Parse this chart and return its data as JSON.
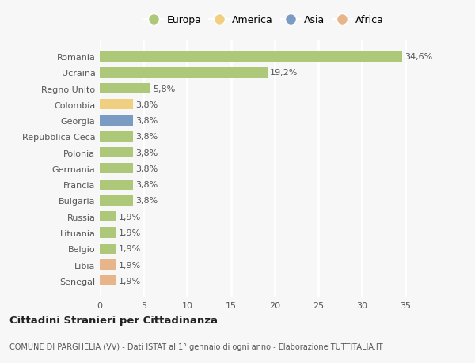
{
  "categories": [
    "Senegal",
    "Libia",
    "Belgio",
    "Lituania",
    "Russia",
    "Bulgaria",
    "Francia",
    "Germania",
    "Polonia",
    "Repubblica Ceca",
    "Georgia",
    "Colombia",
    "Regno Unito",
    "Ucraina",
    "Romania"
  ],
  "values": [
    1.9,
    1.9,
    1.9,
    1.9,
    1.9,
    3.8,
    3.8,
    3.8,
    3.8,
    3.8,
    3.8,
    3.8,
    5.8,
    19.2,
    34.6
  ],
  "labels": [
    "1,9%",
    "1,9%",
    "1,9%",
    "1,9%",
    "1,9%",
    "3,8%",
    "3,8%",
    "3,8%",
    "3,8%",
    "3,8%",
    "3,8%",
    "3,8%",
    "5,8%",
    "19,2%",
    "34,6%"
  ],
  "colors": [
    "#e8b48a",
    "#e8b48a",
    "#aec87a",
    "#aec87a",
    "#aec87a",
    "#aec87a",
    "#aec87a",
    "#aec87a",
    "#aec87a",
    "#aec87a",
    "#7b9cc2",
    "#f0d080",
    "#aec87a",
    "#aec87a",
    "#aec87a"
  ],
  "europa_color": "#aec87a",
  "america_color": "#f0d080",
  "asia_color": "#7b9cc2",
  "africa_color": "#e8b48a",
  "bg_color": "#f7f7f7",
  "grid_color": "#ffffff",
  "title": "Cittadini Stranieri per Cittadinanza",
  "subtitle": "COMUNE DI PARGHELIA (VV) - Dati ISTAT al 1° gennaio di ogni anno - Elaborazione TUTTITALIA.IT",
  "xlabel_ticks": [
    0,
    5,
    10,
    15,
    20,
    25,
    30,
    35
  ],
  "xlim": [
    0,
    37.5
  ]
}
